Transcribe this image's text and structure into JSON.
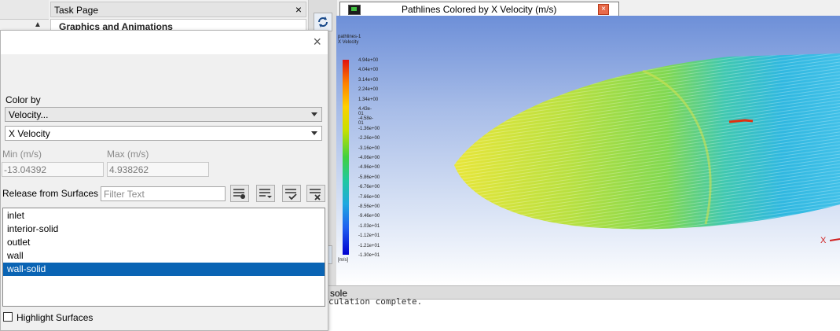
{
  "task_page": {
    "title": "Task Page",
    "close": "×",
    "partial_heading": "Graphics and Animations"
  },
  "graphics": {
    "title": "Pathlines Colored by X Velocity (m/s)",
    "close": "×",
    "viewport_title_lines": [
      "pathlines-1",
      "X Velocity"
    ],
    "colorbar_labels": [
      "4.94e+00",
      "4.04e+00",
      "3.14e+00",
      "2.24e+00",
      "1.34e+00",
      "4.43e-01",
      "-4.58e-01",
      "-1.36e+00",
      "-2.26e+00",
      "-3.16e+00",
      "-4.06e+00",
      "-4.96e+00",
      "-5.86e+00",
      "-6.76e+00",
      "-7.66e+00",
      "-8.56e+00",
      "-9.46e+00",
      "-1.03e+01",
      "-1.12e+01",
      "-1.21e+01",
      "-1.30e+01"
    ],
    "colorbar_unit": "[m/s]",
    "axis_label": "X",
    "colors": {
      "max": "#e01010",
      "mid": "#40d040",
      "min": "#0000d0"
    }
  },
  "console": {
    "tab": "sole",
    "text": "culation complete."
  },
  "dialog": {
    "close": "×",
    "color_by_label": "Color by",
    "color_by_value": "Velocity...",
    "color_sub_value": "X Velocity",
    "min_label": "Min (m/s)",
    "max_label": "Max (m/s)",
    "min_value": "-13.04392",
    "max_value": "4.938262",
    "release_label": "Release from Surfaces",
    "filter_placeholder": "Filter Text",
    "surfaces": [
      "inlet",
      "interior-solid",
      "outlet",
      "wall",
      "wall-solid"
    ],
    "selected_surface": "wall-solid",
    "highlight_label": "Highlight Surfaces",
    "highlight_checked": false
  }
}
